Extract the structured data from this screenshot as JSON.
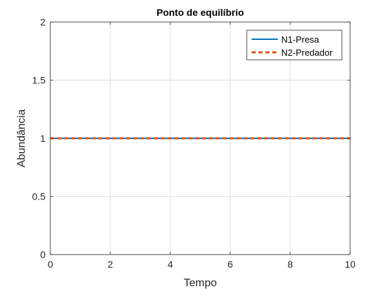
{
  "chart_data": {
    "type": "line",
    "title": "Ponto de equilíbrio",
    "xlabel": "Tempo",
    "ylabel": "Abundância",
    "xlim": [
      0,
      10
    ],
    "ylim": [
      0,
      2
    ],
    "x_ticks": [
      0,
      2,
      4,
      6,
      8,
      10
    ],
    "x_tick_labels": [
      "0",
      "2",
      "4",
      "6",
      "8",
      "10"
    ],
    "y_ticks": [
      0,
      0.5,
      1,
      1.5,
      2
    ],
    "y_tick_labels": [
      "0",
      "0.5",
      "1",
      "1.5",
      "2"
    ],
    "grid": true,
    "legend_position": "top-right",
    "series": [
      {
        "name": "N1-Presa",
        "style": "solid",
        "color": "#0072BD",
        "x": [
          0,
          10
        ],
        "y": [
          1,
          1
        ]
      },
      {
        "name": "N2-Predador",
        "style": "dashed",
        "color": "#D95319",
        "x": [
          0,
          10
        ],
        "y": [
          1,
          1
        ]
      }
    ]
  }
}
